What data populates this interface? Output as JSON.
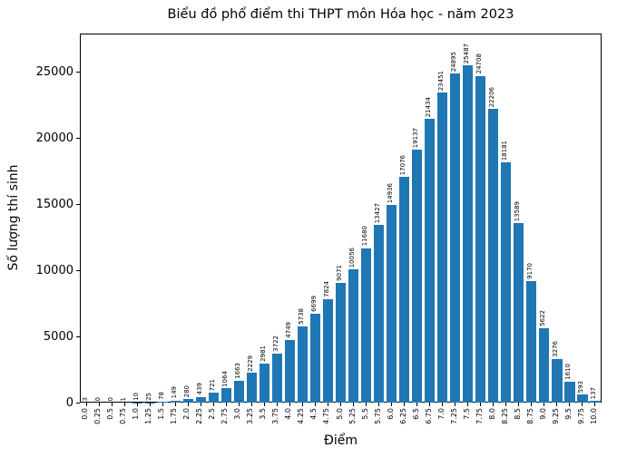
{
  "chart_data": {
    "type": "bar",
    "title": "Biểu đồ phổ điểm thi THPT môn Hóa học - năm 2023",
    "xlabel": "Điểm",
    "ylabel": "Số lượng thí sinh",
    "categories": [
      "0.0",
      "0.25",
      "0.5",
      "0.75",
      "1.0",
      "1.25",
      "1.5",
      "1.75",
      "2.0",
      "2.25",
      "2.5",
      "2.75",
      "3.0",
      "3.25",
      "3.5",
      "3.75",
      "4.0",
      "4.25",
      "4.5",
      "4.75",
      "5.0",
      "5.25",
      "5.5",
      "5.75",
      "6.0",
      "6.25",
      "6.5",
      "6.75",
      "7.0",
      "7.25",
      "7.5",
      "7.75",
      "8.0",
      "8.25",
      "8.5",
      "8.75",
      "9.0",
      "9.25",
      "9.5",
      "9.75",
      "10.0"
    ],
    "values": [
      3,
      0,
      0,
      1,
      10,
      25,
      78,
      149,
      280,
      439,
      721,
      1064,
      1663,
      2229,
      2981,
      3722,
      4749,
      5738,
      6699,
      7824,
      9071,
      10056,
      11680,
      13427,
      14936,
      17076,
      19137,
      21434,
      23451,
      24895,
      25487,
      24708,
      22206,
      18181,
      13589,
      9170,
      5622,
      3276,
      1610,
      593,
      137
    ],
    "bar_labels_shown": true,
    "bar_label_rotation_deg": 90,
    "x_tick_rotation_deg": 90,
    "yticks": [
      0,
      5000,
      10000,
      15000,
      20000,
      25000
    ],
    "ylim": [
      0,
      27900
    ],
    "bar_color": "#1f77b4",
    "grid": false,
    "legend_position": "none"
  }
}
